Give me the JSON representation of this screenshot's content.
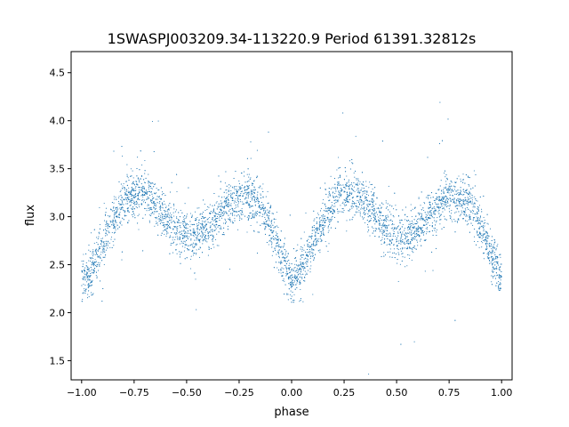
{
  "chart_data": {
    "type": "scatter",
    "title": "1SWASPJ003209.34-113220.9 Period 61391.32812s",
    "xlabel": "phase",
    "ylabel": "flux",
    "xlim": [
      -1.05,
      1.05
    ],
    "ylim": [
      1.3,
      4.72
    ],
    "x_ticks": [
      -1.0,
      -0.75,
      -0.5,
      -0.25,
      0.0,
      0.25,
      0.5,
      0.75,
      1.0
    ],
    "x_tick_labels": [
      "−1.00",
      "−0.75",
      "−0.50",
      "−0.25",
      "0.00",
      "0.25",
      "0.50",
      "0.75",
      "1.00"
    ],
    "y_ticks": [
      1.5,
      2.0,
      2.5,
      3.0,
      3.5,
      4.0,
      4.5
    ],
    "y_tick_labels": [
      "1.5",
      "2.0",
      "2.5",
      "3.0",
      "3.5",
      "4.0",
      "4.5"
    ],
    "grid": false,
    "legend": "none",
    "marker_color": "#1f77b4",
    "series": [
      {
        "x": [
          -1.0,
          -0.95,
          -0.9,
          -0.85,
          -0.8,
          -0.75,
          -0.7,
          -0.65,
          -0.6,
          -0.55,
          -0.5,
          -0.45,
          -0.4,
          -0.35,
          -0.3,
          -0.25,
          -0.2,
          -0.15,
          -0.1,
          -0.05,
          0.0,
          0.05,
          0.1,
          0.15,
          0.2,
          0.25,
          0.3,
          0.35,
          0.4,
          0.45,
          0.5,
          0.55,
          0.6,
          0.65,
          0.7,
          0.75,
          0.8,
          0.85,
          0.9,
          0.95,
          1.0
        ],
        "y": [
          2.35,
          2.45,
          2.7,
          2.95,
          3.15,
          3.25,
          3.25,
          3.15,
          3.0,
          2.88,
          2.8,
          2.8,
          2.88,
          3.0,
          3.12,
          3.2,
          3.22,
          3.1,
          2.9,
          2.6,
          2.35,
          2.45,
          2.7,
          2.95,
          3.15,
          3.25,
          3.25,
          3.15,
          3.0,
          2.88,
          2.8,
          2.8,
          2.88,
          3.0,
          3.12,
          3.2,
          3.22,
          3.1,
          2.9,
          2.6,
          2.35
        ]
      }
    ]
  }
}
